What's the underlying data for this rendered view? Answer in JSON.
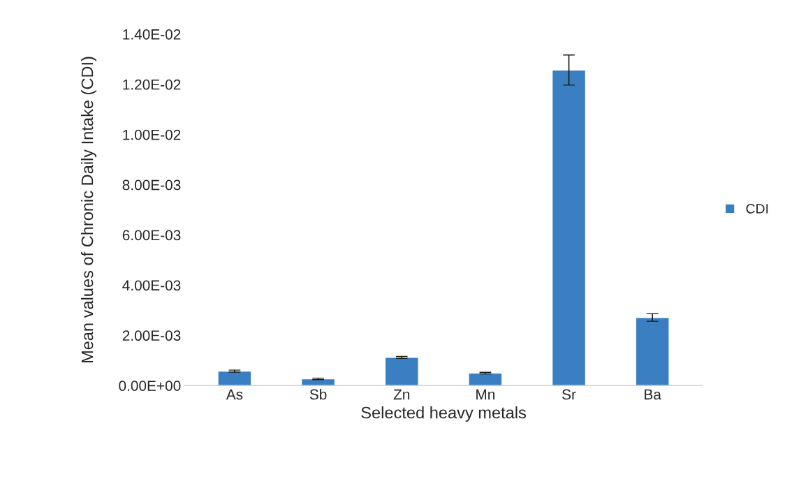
{
  "chart_data": {
    "type": "bar",
    "xlabel": "Selected heavy metals",
    "ylabel": "Mean values of Chronic Daily Intake (CDI)",
    "categories": [
      "As",
      "Sb",
      "Zn",
      "Mn",
      "Sr",
      "Ba"
    ],
    "series": [
      {
        "name": "CDI",
        "color": "#3a7fc1",
        "values": [
          0.000575,
          0.000265,
          0.00112,
          0.000495,
          0.01257,
          0.00271
        ],
        "errors": [
          4e-05,
          3e-05,
          4e-05,
          3e-05,
          0.0006,
          0.00015
        ]
      }
    ],
    "ylim": [
      0,
      0.014
    ],
    "yticks": [
      {
        "value": 0,
        "label": "0.00E+00"
      },
      {
        "value": 0.002,
        "label": "2.00E-03"
      },
      {
        "value": 0.004,
        "label": "4.00E-03"
      },
      {
        "value": 0.006,
        "label": "6.00E-03"
      },
      {
        "value": 0.008,
        "label": "8.00E-03"
      },
      {
        "value": 0.01,
        "label": "1.00E-02"
      },
      {
        "value": 0.012,
        "label": "1.20E-02"
      },
      {
        "value": 0.014,
        "label": "1.40E-02"
      }
    ],
    "grid": false,
    "legend": "right"
  }
}
